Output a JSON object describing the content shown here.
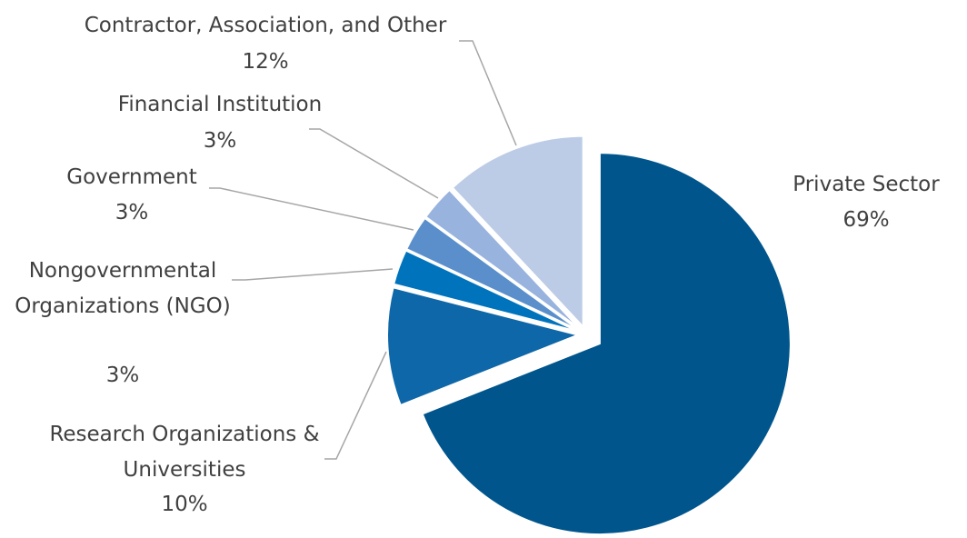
{
  "chart_data": {
    "type": "pie",
    "categories": [
      "Private Sector",
      "Research Organizations & Universities",
      "Nongovernmental Organizations (NGO)",
      "Government",
      "Financial Institution",
      "Contractor, Association, and Other"
    ],
    "values": [
      69,
      10,
      3,
      3,
      3,
      12
    ],
    "value_labels": [
      "69%",
      "10%",
      "3%",
      "3%",
      "3%",
      "12%"
    ],
    "colors": [
      "#00558c",
      "#0e67a8",
      "#0073bd",
      "#5a8fcb",
      "#98b3dd",
      "#bccbe6"
    ]
  }
}
